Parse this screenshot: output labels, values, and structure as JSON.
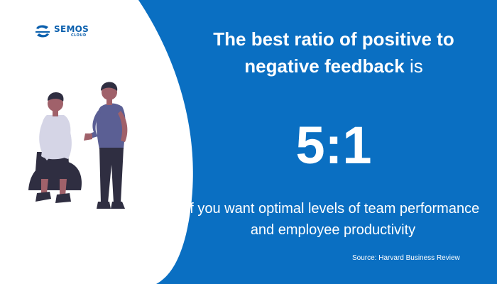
{
  "logo": {
    "name": "SEMOS",
    "sub": "CLOUD",
    "icon": "semos-cloud-logo-icon"
  },
  "headline": {
    "bold_part": "The best ratio of positive to negative feedback",
    "normal_part": " is"
  },
  "ratio": "5:1",
  "subtext": "if you want optimal levels of team performance and employee productivity",
  "source": "Source: Harvard Business Review",
  "illustration": "two-people-talking-illustration",
  "colors": {
    "background_blue": "#0a6fc2",
    "panel_white": "#ffffff",
    "logo_blue": "#0a5fad",
    "shirt_blue": "#5b5f94",
    "shirt_lavender": "#d5d5e6",
    "pants_dark": "#2f2e41",
    "skin": "#a0616a"
  }
}
